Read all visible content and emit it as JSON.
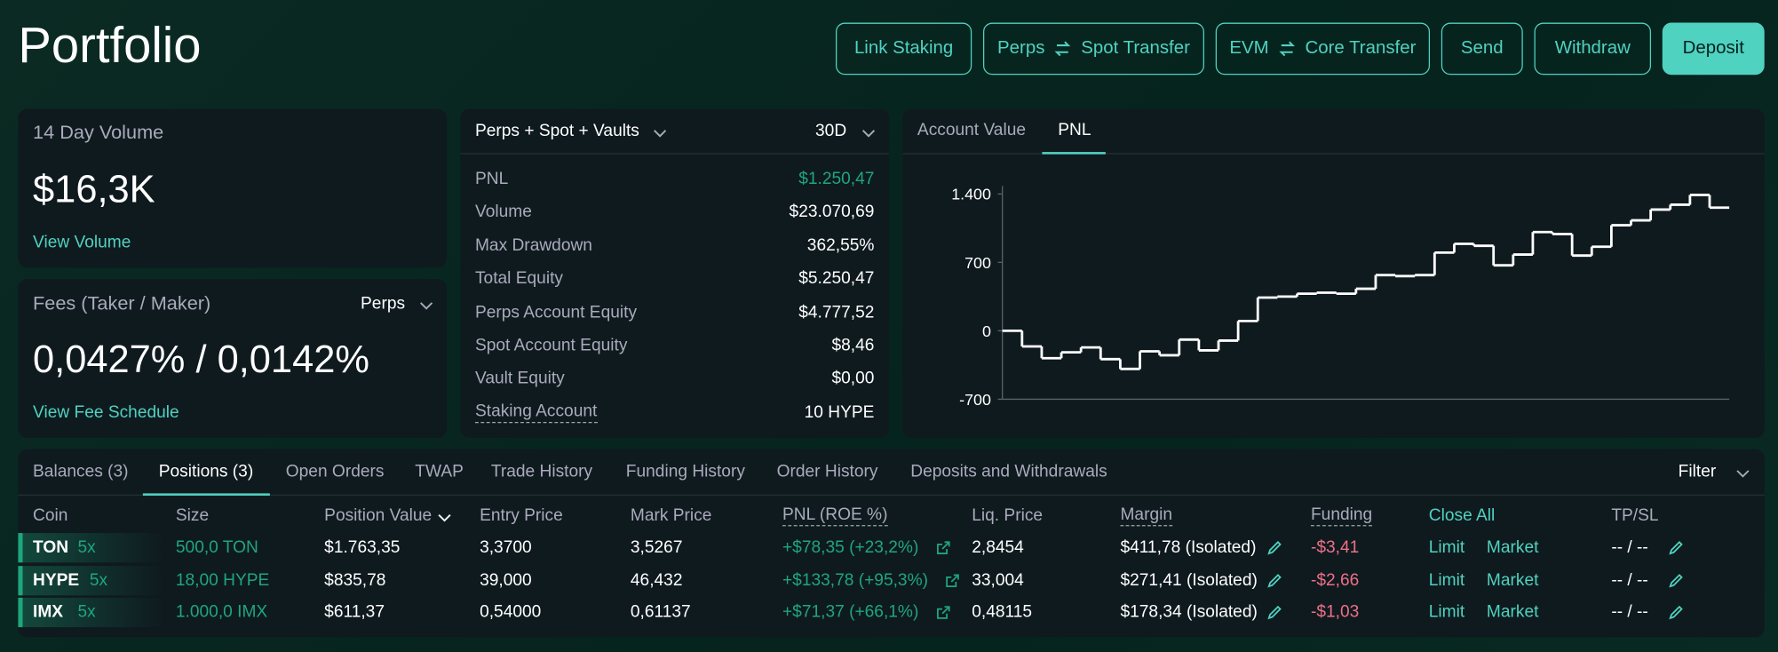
{
  "header": {
    "title": "Portfolio",
    "buttons": [
      {
        "label": "Link Staking"
      },
      {
        "from": "Perps",
        "to": "Spot Transfer"
      },
      {
        "from": "EVM",
        "to": "Core Transfer"
      },
      {
        "label": "Send"
      },
      {
        "label": "Withdraw"
      },
      {
        "label": "Deposit"
      }
    ]
  },
  "volume_card": {
    "title": "14 Day Volume",
    "value": "$16,3K",
    "link": "View Volume"
  },
  "fees_card": {
    "title": "Fees (Taker / Maker)",
    "selector": "Perps",
    "value": "0,0427% / 0,0142%",
    "link": "View Fee Schedule"
  },
  "stats": {
    "scope": "Perps + Spot + Vaults",
    "period": "30D",
    "rows": [
      {
        "label": "PNL",
        "value": "$1.250,47"
      },
      {
        "label": "Volume",
        "value": "$23.070,69"
      },
      {
        "label": "Max Drawdown",
        "value": "362,55%"
      },
      {
        "label": "Total Equity",
        "value": "$5.250,47"
      },
      {
        "label": "Perps Account Equity",
        "value": "$4.777,52"
      },
      {
        "label": "Spot Account Equity",
        "value": "$8,46"
      },
      {
        "label": "Vault Equity",
        "value": "$0,00"
      },
      {
        "label": "Staking Account",
        "value": "10 HYPE"
      }
    ]
  },
  "chart_panel": {
    "tabs": [
      "Account Value",
      "PNL"
    ],
    "active_tab": 1,
    "chart": {
      "type": "line",
      "step": true,
      "color": "#ffffff",
      "ylim": [
        -700,
        1500
      ],
      "yticks": [
        -700,
        0,
        700,
        {
          "value": 1400,
          "label": "1.400"
        }
      ],
      "values": [
        0,
        -160,
        -280,
        -220,
        -170,
        -290,
        -390,
        -210,
        -250,
        -90,
        -200,
        -100,
        100,
        340,
        350,
        380,
        390,
        380,
        430,
        570,
        560,
        570,
        800,
        890,
        870,
        670,
        780,
        1010,
        990,
        770,
        860,
        1080,
        1130,
        1240,
        1290,
        1390,
        1260
      ]
    }
  },
  "positions": {
    "tabs": [
      "Balances (3)",
      "Positions (3)",
      "Open Orders",
      "TWAP",
      "Trade History",
      "Funding History",
      "Order History",
      "Deposits and Withdrawals"
    ],
    "active_tab": 1,
    "filter": "Filter",
    "columns": [
      "Coin",
      "Size",
      "Position Value",
      "Entry Price",
      "Mark Price",
      "PNL (ROE %)",
      "Liq. Price",
      "Margin",
      "Funding",
      "Close All",
      "TP/SL"
    ],
    "rows": [
      {
        "coin": "TON",
        "leverage": "5x",
        "size": "500,0 TON",
        "position_value": "$1.763,35",
        "entry_price": "3,3700",
        "mark_price": "3,5267",
        "pnl": "+$78,35 (+23,2%)",
        "liq_price": "2,8454",
        "margin": "$411,78 (Isolated)",
        "funding": "-$3,41",
        "limit": "Limit",
        "market": "Market",
        "tp_sl": "-- / --"
      },
      {
        "coin": "HYPE",
        "leverage": "5x",
        "size": "18,00 HYPE",
        "position_value": "$835,78",
        "entry_price": "39,000",
        "mark_price": "46,432",
        "pnl": "+$133,78 (+95,3%)",
        "liq_price": "33,004",
        "margin": "$271,41 (Isolated)",
        "funding": "-$2,66",
        "limit": "Limit",
        "market": "Market",
        "tp_sl": "-- / --"
      },
      {
        "coin": "IMX",
        "leverage": "5x",
        "size": "1.000,0 IMX",
        "position_value": "$611,37",
        "entry_price": "0,54000",
        "mark_price": "0,61137",
        "pnl": "+$71,37 (+66,1%)",
        "liq_price": "0,48115",
        "margin": "$178,34 (Isolated)",
        "funding": "-$1,03",
        "limit": "Limit",
        "market": "Market",
        "tp_sl": "-- / --"
      }
    ]
  }
}
